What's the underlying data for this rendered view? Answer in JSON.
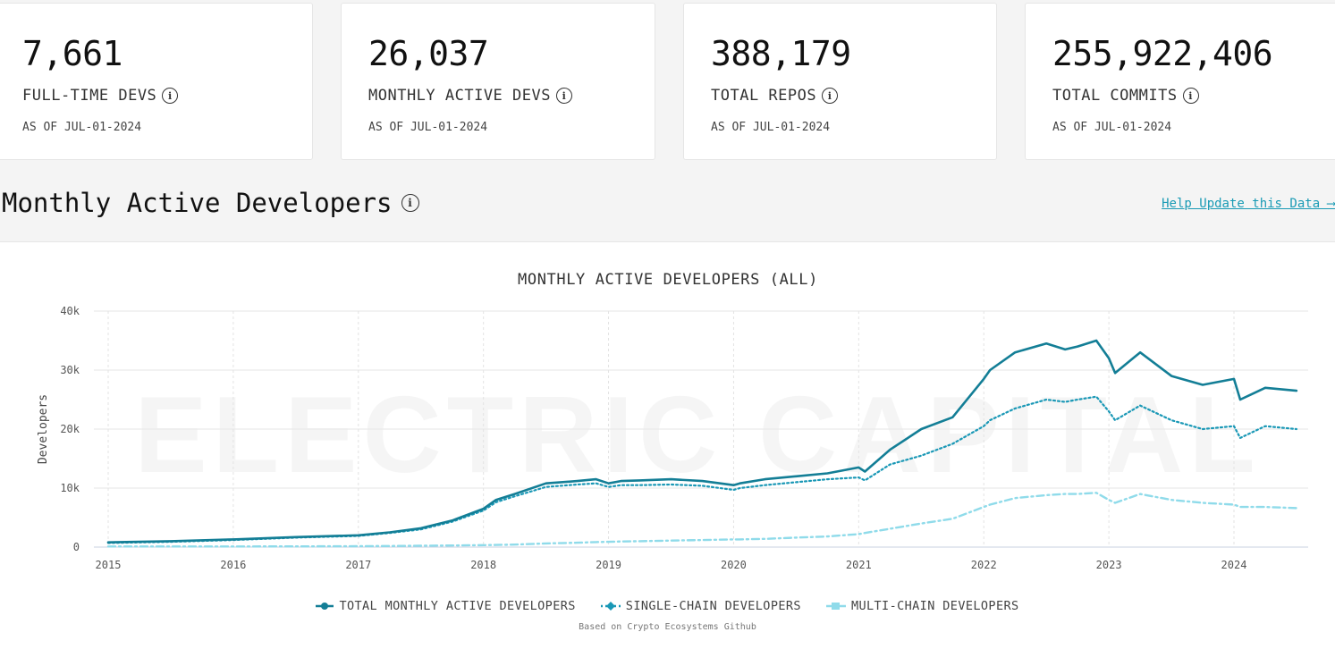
{
  "stats": [
    {
      "value": "7,661",
      "label": "FULL-TIME DEVS",
      "asof": "AS OF JUL-01-2024"
    },
    {
      "value": "26,037",
      "label": "MONTHLY ACTIVE DEVS",
      "asof": "AS OF JUL-01-2024"
    },
    {
      "value": "388,179",
      "label": "TOTAL REPOS",
      "asof": "AS OF JUL-01-2024"
    },
    {
      "value": "255,922,406",
      "label": "TOTAL COMMITS",
      "asof": "AS OF JUL-01-2024"
    }
  ],
  "section": {
    "title": "Monthly Active Developers",
    "help_link": "Help Update this Data ⟶"
  },
  "watermark": "ELECTRIC CAPITAL",
  "source_note": "Based on Crypto Ecosystems Github",
  "colors": {
    "total": "#137e96",
    "single": "#1a98b6",
    "multi": "#8fdbea"
  },
  "chart_data": {
    "type": "line",
    "title": "MONTHLY ACTIVE DEVELOPERS (ALL)",
    "ylabel": "Developers",
    "xlabel": "",
    "ylim": [
      0,
      40000
    ],
    "y_ticks": [
      {
        "v": 0,
        "label": "0"
      },
      {
        "v": 10000,
        "label": "10k"
      },
      {
        "v": 20000,
        "label": "20k"
      },
      {
        "v": 30000,
        "label": "30k"
      },
      {
        "v": 40000,
        "label": "40k"
      }
    ],
    "x_ticks": [
      "2015",
      "2016",
      "2017",
      "2018",
      "2019",
      "2020",
      "2021",
      "2022",
      "2023",
      "2024"
    ],
    "grid": true,
    "legend_position": "bottom-center",
    "x": [
      2015.0,
      2015.5,
      2016.0,
      2016.5,
      2017.0,
      2017.25,
      2017.5,
      2017.75,
      2018.0,
      2018.1,
      2018.25,
      2018.5,
      2018.75,
      2018.9,
      2019.0,
      2019.1,
      2019.25,
      2019.5,
      2019.75,
      2020.0,
      2020.05,
      2020.25,
      2020.5,
      2020.75,
      2021.0,
      2021.05,
      2021.25,
      2021.5,
      2021.75,
      2022.0,
      2022.05,
      2022.25,
      2022.5,
      2022.65,
      2022.75,
      2022.9,
      2023.0,
      2023.05,
      2023.25,
      2023.5,
      2023.75,
      2024.0,
      2024.05,
      2024.25,
      2024.5
    ],
    "series": [
      {
        "name": "TOTAL MONTHLY ACTIVE DEVELOPERS",
        "values": [
          800,
          1000,
          1300,
          1700,
          2000,
          2500,
          3200,
          4500,
          6500,
          8000,
          9000,
          10800,
          11200,
          11500,
          10800,
          11200,
          11300,
          11500,
          11200,
          10500,
          10800,
          11500,
          12000,
          12500,
          13500,
          12800,
          16500,
          20000,
          22000,
          28500,
          30000,
          33000,
          34500,
          33500,
          34000,
          35000,
          32000,
          29500,
          33000,
          29000,
          27500,
          28500,
          25000,
          27000,
          26500
        ]
      },
      {
        "name": "SINGLE-CHAIN DEVELOPERS",
        "values": [
          700,
          900,
          1200,
          1600,
          1900,
          2400,
          3000,
          4300,
          6200,
          7600,
          8600,
          10200,
          10600,
          10800,
          10200,
          10500,
          10500,
          10600,
          10400,
          9700,
          10000,
          10500,
          11000,
          11500,
          11800,
          11300,
          14000,
          15500,
          17500,
          20500,
          21500,
          23500,
          25000,
          24600,
          25000,
          25500,
          23000,
          21500,
          24000,
          21500,
          20000,
          20500,
          18500,
          20500,
          20000
        ]
      },
      {
        "name": "MULTI-CHAIN DEVELOPERS",
        "values": [
          100,
          100,
          100,
          120,
          150,
          180,
          220,
          270,
          330,
          370,
          420,
          620,
          750,
          850,
          900,
          950,
          1000,
          1100,
          1200,
          1300,
          1300,
          1400,
          1600,
          1800,
          2200,
          2400,
          3100,
          4000,
          4800,
          6800,
          7200,
          8300,
          8800,
          9000,
          9000,
          9200,
          8000,
          7500,
          9000,
          8000,
          7500,
          7200,
          6800,
          6800,
          6600
        ]
      }
    ]
  }
}
